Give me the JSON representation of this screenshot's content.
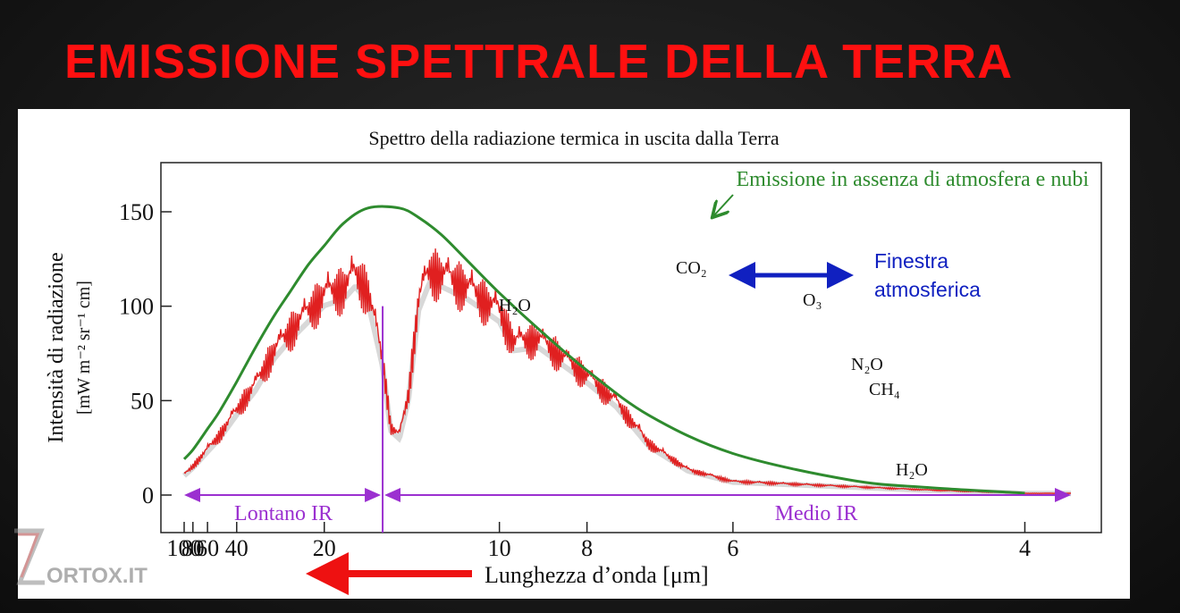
{
  "slide": {
    "title": "EMISSIONE SPETTRALE DELLA TERRA",
    "watermark_text": "ORTOX.IT"
  },
  "colors": {
    "title": "#ff1010",
    "blackbody_curve": "#2e8b2e",
    "observed_spectrum": "#e02020",
    "band_arrows": "#9b30d0",
    "window_arrow": "#1020c0",
    "direction_arrow": "#ee1111"
  },
  "chart_data": {
    "type": "line",
    "title": "Spettro della radiazione termica in uscita dalla Terra",
    "xlabel": "Lunghezza d’onda [μm]",
    "ylabel_line1": "Intensità di radiazione",
    "ylabel_line2": "[mW m⁻² sr⁻¹ cm]",
    "x_axis_scale": "wavenumber (reciprocal of wavelength)",
    "x_ticks": [
      100,
      80,
      60,
      40,
      20,
      10,
      8,
      6,
      4
    ],
    "y_ticks": [
      0,
      50,
      100,
      150
    ],
    "xlim_um": [
      100,
      3.8
    ],
    "ylim": [
      -15,
      175
    ],
    "series": [
      {
        "name": "Emissione in assenza di atmosfera e nubi",
        "x_um": [
          100,
          80,
          60,
          50,
          40,
          33,
          28,
          25,
          22,
          20,
          18,
          16,
          14,
          13,
          12,
          11,
          10,
          9,
          8,
          7,
          6,
          5,
          4.5,
          4
        ],
        "values": [
          19,
          24,
          35,
          44,
          60,
          78,
          95,
          107,
          122,
          132,
          144,
          152,
          152,
          147,
          138,
          124,
          107,
          88,
          66,
          42,
          22,
          8,
          4,
          1
        ]
      },
      {
        "name": "",
        "x_um": [
          100,
          80,
          60,
          50,
          40,
          33,
          28,
          25,
          22,
          20,
          18,
          17,
          16,
          15,
          14.5,
          14,
          13.5,
          13,
          12.5,
          12,
          11,
          10,
          9.6,
          9,
          8,
          7.5,
          7,
          6.5,
          6,
          5,
          4.5,
          4
        ],
        "values": [
          12,
          17,
          27,
          35,
          50,
          65,
          85,
          96,
          108,
          118,
          122,
          130,
          120,
          80,
          40,
          35,
          60,
          115,
          132,
          130,
          122,
          108,
          90,
          92,
          70,
          55,
          30,
          15,
          8,
          5,
          3,
          1
        ]
      }
    ],
    "annotations": {
      "co2": "CO₂",
      "h2o_far": "H₂O",
      "o3": "O₃",
      "n2o": "N₂O",
      "ch4": "CH₄",
      "h2o_mid": "H₂O",
      "window_line1": "Finestra",
      "window_line2": "atmosferica"
    },
    "bands": {
      "far": {
        "label": "Lontano IR",
        "from_um": 100,
        "to_um": 15
      },
      "mid": {
        "label": "Medio IR",
        "from_um": 15,
        "to_um": 3.8
      }
    },
    "divider_um": 15,
    "grid": false,
    "legend": "none"
  }
}
